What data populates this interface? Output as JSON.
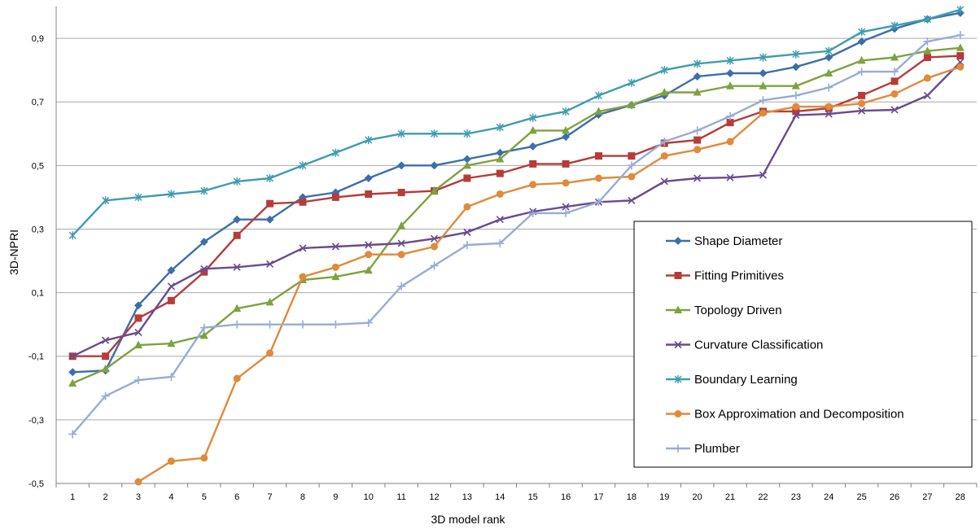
{
  "chart_data": {
    "type": "line",
    "xlabel": "3D model rank",
    "ylabel": "3D-NPRI",
    "ylim": [
      -0.5,
      1.0
    ],
    "yticks": [
      "-0,5",
      "-0,3",
      "-0,1",
      "0,1",
      "0,3",
      "0,5",
      "0,7",
      "0,9"
    ],
    "x": [
      1,
      2,
      3,
      4,
      5,
      6,
      7,
      8,
      9,
      10,
      11,
      12,
      13,
      14,
      15,
      16,
      17,
      18,
      19,
      20,
      21,
      22,
      23,
      24,
      25,
      26,
      27,
      28
    ],
    "grid": "horizontal",
    "legend_position": "bottom-right",
    "series": [
      {
        "name": "Shape Diameter",
        "color": "#3c6eab",
        "marker": "diamond",
        "values": [
          -0.15,
          -0.145,
          0.06,
          0.17,
          0.26,
          0.33,
          0.33,
          0.4,
          0.415,
          0.46,
          0.5,
          0.5,
          0.52,
          0.54,
          0.56,
          0.59,
          0.66,
          0.69,
          0.72,
          0.78,
          0.79,
          0.79,
          0.81,
          0.84,
          0.89,
          0.93,
          0.96,
          0.98
        ]
      },
      {
        "name": "Fitting Primitives",
        "color": "#b63b3b",
        "marker": "square",
        "values": [
          -0.1,
          -0.1,
          0.02,
          0.075,
          0.165,
          0.28,
          0.38,
          0.385,
          0.4,
          0.41,
          0.415,
          0.42,
          0.46,
          0.475,
          0.505,
          0.505,
          0.53,
          0.53,
          0.57,
          0.58,
          0.635,
          0.67,
          0.67,
          0.68,
          0.72,
          0.765,
          0.84,
          0.845
        ]
      },
      {
        "name": "Topology Driven",
        "color": "#7ea23f",
        "marker": "triangle",
        "values": [
          -0.185,
          -0.14,
          -0.065,
          -0.06,
          -0.035,
          0.05,
          0.07,
          0.14,
          0.15,
          0.17,
          0.31,
          0.42,
          0.5,
          0.52,
          0.61,
          0.61,
          0.67,
          0.69,
          0.73,
          0.73,
          0.75,
          0.75,
          0.75,
          0.79,
          0.83,
          0.84,
          0.86,
          0.87
        ]
      },
      {
        "name": "Curvature Classification",
        "color": "#6a4a8f",
        "marker": "x",
        "values": [
          -0.1,
          -0.05,
          -0.025,
          0.12,
          0.175,
          0.18,
          0.19,
          0.24,
          0.245,
          0.25,
          0.255,
          0.27,
          0.29,
          0.33,
          0.355,
          0.37,
          0.385,
          0.39,
          0.45,
          0.46,
          0.462,
          0.47,
          0.658,
          0.662,
          0.672,
          0.675,
          0.72,
          0.825
        ]
      },
      {
        "name": "Boundary Learning",
        "color": "#3f9cb0",
        "marker": "star",
        "values": [
          0.28,
          0.39,
          0.4,
          0.41,
          0.42,
          0.45,
          0.46,
          0.5,
          0.54,
          0.58,
          0.6,
          0.6,
          0.6,
          0.62,
          0.65,
          0.67,
          0.72,
          0.76,
          0.8,
          0.82,
          0.83,
          0.84,
          0.85,
          0.86,
          0.92,
          0.94,
          0.96,
          0.99
        ]
      },
      {
        "name": "Box Approximation and Decomposition",
        "color": "#e08a3a",
        "marker": "circle",
        "values": [
          null,
          null,
          -0.495,
          -0.43,
          -0.42,
          -0.17,
          -0.09,
          0.15,
          0.18,
          0.22,
          0.22,
          0.245,
          0.37,
          0.41,
          0.44,
          0.445,
          0.46,
          0.465,
          0.53,
          0.55,
          0.575,
          0.665,
          0.685,
          0.685,
          0.695,
          0.725,
          0.775,
          0.81
        ]
      },
      {
        "name": "Plumber",
        "color": "#98acd3",
        "marker": "plus",
        "values": [
          -0.345,
          -0.225,
          -0.175,
          -0.165,
          -0.01,
          0.0,
          0.0,
          0.0,
          0.0,
          0.005,
          0.12,
          0.185,
          0.25,
          0.255,
          0.35,
          0.35,
          0.385,
          0.5,
          0.575,
          0.61,
          0.655,
          0.705,
          0.72,
          0.745,
          0.795,
          0.795,
          0.89,
          0.91
        ]
      }
    ]
  }
}
